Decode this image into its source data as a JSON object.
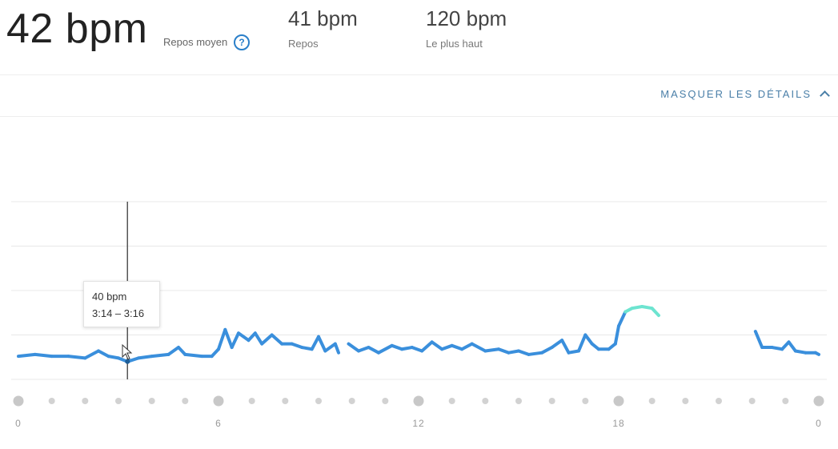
{
  "summary": {
    "main_value": "42 bpm",
    "main_label": "Repos moyen",
    "help_glyph": "?",
    "stats": [
      {
        "value": "41 bpm",
        "label": "Repos"
      },
      {
        "value": "120 bpm",
        "label": "Le plus haut"
      }
    ]
  },
  "details_toggle": {
    "label": "MASQUER LES DÉTAILS",
    "icon": "chevron-up-icon"
  },
  "tooltip": {
    "value": "40 bpm",
    "range": "3:14 – 3:16",
    "hour": 3.27
  },
  "colors": {
    "line": "#3a8fdc",
    "high": "#6de4d0",
    "grid": "#e8e8e8",
    "dot": "#cccccc",
    "tick": "#999999"
  },
  "chart_data": {
    "type": "line",
    "title": "",
    "xlabel": "",
    "ylabel": "",
    "x_tick_labels": [
      "0",
      "6",
      "12",
      "18",
      "0"
    ],
    "xlim": [
      0,
      24
    ],
    "ylim": [
      30,
      130
    ],
    "grid": true,
    "series": [
      {
        "segment": 1,
        "points": [
          [
            0,
            43
          ],
          [
            0.5,
            44
          ],
          [
            1,
            43
          ],
          [
            1.5,
            43
          ],
          [
            2,
            42
          ],
          [
            2.4,
            46
          ],
          [
            2.7,
            43
          ],
          [
            3,
            42
          ],
          [
            3.27,
            40
          ],
          [
            3.6,
            42
          ],
          [
            4,
            43
          ],
          [
            4.5,
            44
          ],
          [
            4.8,
            48
          ],
          [
            5,
            44
          ],
          [
            5.5,
            43
          ],
          [
            5.8,
            43
          ],
          [
            6,
            47
          ],
          [
            6.2,
            58
          ],
          [
            6.4,
            48
          ],
          [
            6.6,
            56
          ],
          [
            6.9,
            52
          ],
          [
            7.1,
            56
          ],
          [
            7.3,
            50
          ],
          [
            7.6,
            55
          ],
          [
            7.9,
            50
          ],
          [
            8.2,
            50
          ],
          [
            8.5,
            48
          ],
          [
            8.8,
            47
          ],
          [
            9,
            54
          ],
          [
            9.2,
            46
          ],
          [
            9.5,
            50
          ],
          [
            9.6,
            45
          ]
        ]
      },
      {
        "segment": 2,
        "points": [
          [
            9.9,
            50
          ],
          [
            10.2,
            46
          ],
          [
            10.5,
            48
          ],
          [
            10.8,
            45
          ],
          [
            11.2,
            49
          ],
          [
            11.5,
            47
          ],
          [
            11.8,
            48
          ],
          [
            12.1,
            46
          ],
          [
            12.4,
            51
          ],
          [
            12.7,
            47
          ],
          [
            13,
            49
          ],
          [
            13.3,
            47
          ],
          [
            13.6,
            50
          ],
          [
            14,
            46
          ],
          [
            14.4,
            47
          ],
          [
            14.7,
            45
          ],
          [
            15,
            46
          ],
          [
            15.3,
            44
          ],
          [
            15.7,
            45
          ],
          [
            16,
            48
          ],
          [
            16.3,
            52
          ],
          [
            16.5,
            45
          ],
          [
            16.8,
            46
          ],
          [
            17,
            55
          ],
          [
            17.2,
            50
          ],
          [
            17.4,
            47
          ],
          [
            17.7,
            47
          ],
          [
            17.9,
            50
          ],
          [
            18,
            60
          ],
          [
            18.2,
            68
          ],
          [
            18.4,
            70
          ],
          [
            18.7,
            71
          ],
          [
            19,
            70
          ],
          [
            19.2,
            66
          ]
        ]
      },
      {
        "segment": 3,
        "points": [
          [
            22.1,
            57
          ],
          [
            22.3,
            48
          ],
          [
            22.6,
            48
          ],
          [
            22.9,
            47
          ],
          [
            23.1,
            51
          ],
          [
            23.3,
            46
          ],
          [
            23.6,
            45
          ],
          [
            23.9,
            45
          ],
          [
            24,
            44
          ]
        ]
      }
    ],
    "high_threshold_bpm": 62
  }
}
